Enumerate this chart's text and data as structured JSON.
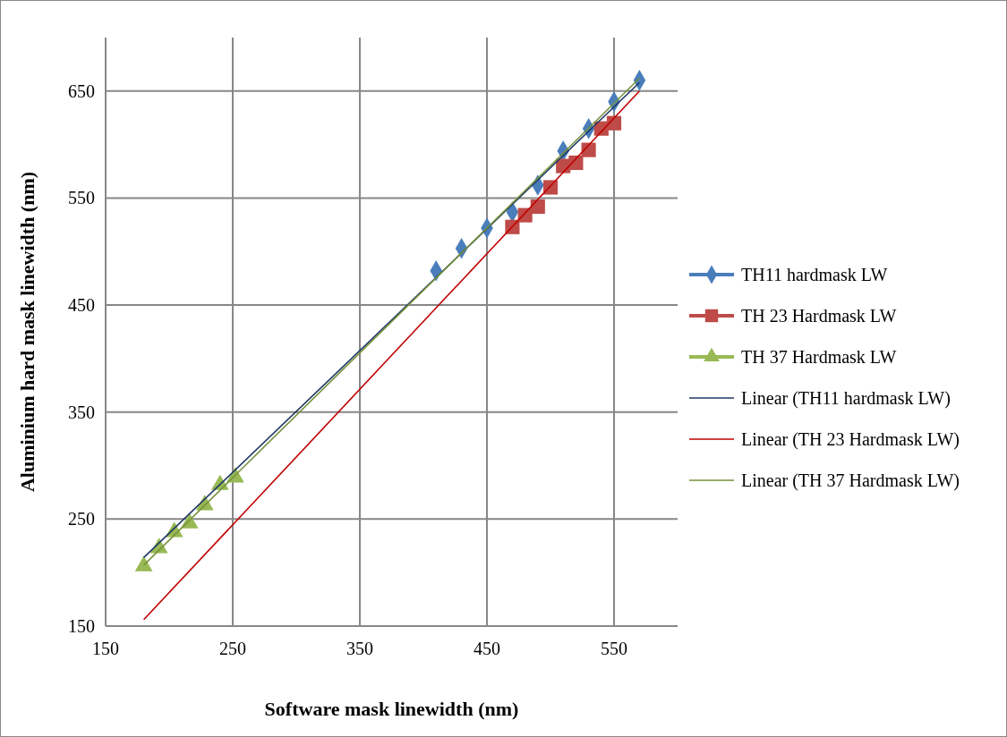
{
  "chart_data": {
    "type": "scatter",
    "xlabel": "Software mask linewidth (nm)",
    "ylabel": "Aluminium hard mask linewidth (nm)",
    "xlim": [
      150,
      600
    ],
    "xticks": [
      150,
      250,
      350,
      450,
      550
    ],
    "ylim": [
      150,
      700
    ],
    "yticks": [
      150,
      250,
      350,
      450,
      550,
      650
    ],
    "grid": true,
    "legend": "right",
    "series": [
      {
        "name": "TH11 hardmask LW",
        "color": "#4a7ebb",
        "marker": "diamond",
        "x": [
          410,
          430,
          450,
          470,
          490,
          510,
          530,
          550,
          570
        ],
        "values": [
          482,
          503,
          522,
          537,
          562,
          594,
          615,
          640,
          660
        ]
      },
      {
        "name": "TH 23 Hardmask LW",
        "color": "#be4b48",
        "marker": "square",
        "x": [
          470,
          480,
          490,
          500,
          510,
          520,
          530,
          540,
          550
        ],
        "values": [
          523,
          534,
          542,
          560,
          580,
          583,
          595,
          615,
          620
        ]
      },
      {
        "name": "TH 37 Hardmask LW",
        "color": "#98b954",
        "marker": "triangle",
        "x": [
          180,
          192,
          204,
          216,
          228,
          240,
          252
        ],
        "values": [
          206,
          223,
          238,
          246,
          263,
          282,
          289
        ]
      },
      {
        "name": "Linear (TH11 hardmask LW)",
        "type": "line",
        "color": "#1f3864",
        "marker": "none",
        "x": [
          180,
          570
        ],
        "values": [
          214,
          658
        ]
      },
      {
        "name": "Linear (TH 23 Hardmask LW)",
        "type": "line",
        "color": "#c00000",
        "marker": "none",
        "x": [
          180,
          570
        ],
        "values": [
          156,
          650
        ]
      },
      {
        "name": "Linear (TH 37 Hardmask LW)",
        "type": "line",
        "color": "#76923c",
        "marker": "none",
        "x": [
          180,
          570
        ],
        "values": [
          207,
          662
        ]
      }
    ]
  }
}
